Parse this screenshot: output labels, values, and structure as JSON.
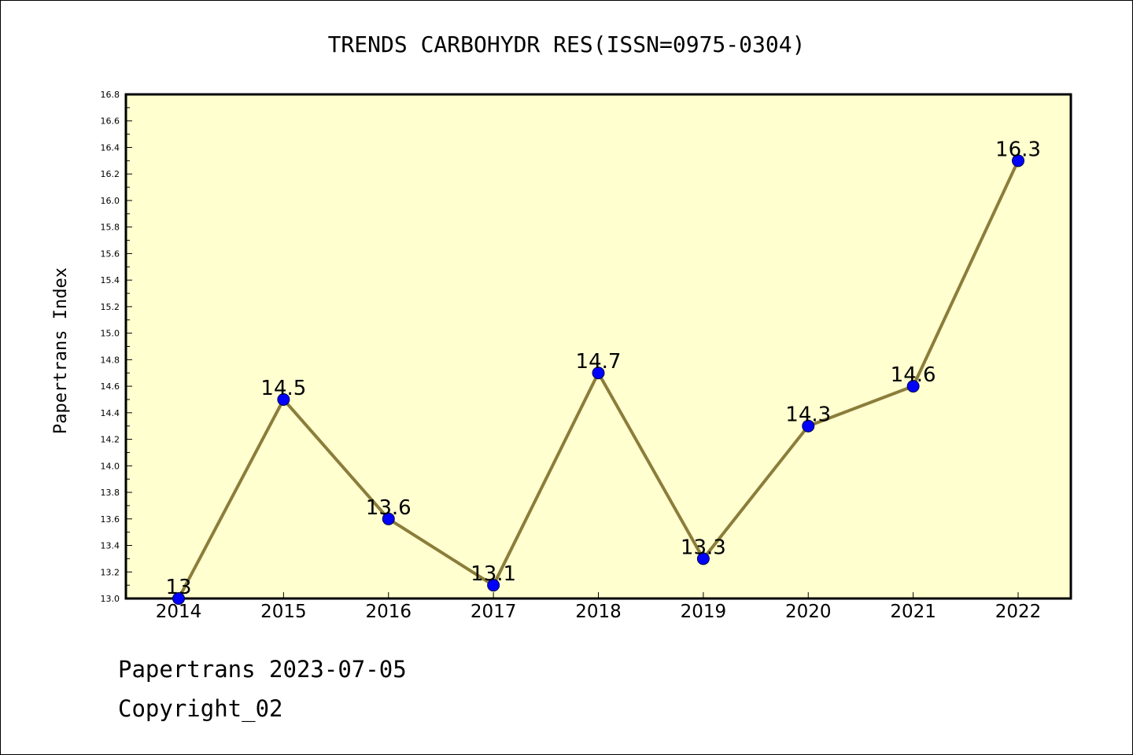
{
  "footer": {
    "line1": "Papertrans 2023-07-05",
    "line2": "Copyright_02"
  },
  "chart_data": {
    "type": "line",
    "title": "TRENDS CARBOHYDR RES(ISSN=0975-0304)",
    "xlabel": "",
    "ylabel": "Papertrans Index",
    "categories": [
      "2014",
      "2015",
      "2016",
      "2017",
      "2018",
      "2019",
      "2020",
      "2021",
      "2022"
    ],
    "values": [
      13,
      14.5,
      13.6,
      13.1,
      14.7,
      13.3,
      14.3,
      14.6,
      16.3
    ],
    "data_labels": [
      "13",
      "14.5",
      "13.6",
      "13.1",
      "14.7",
      "13.3",
      "14.3",
      "14.6",
      "16.3"
    ],
    "ylim": [
      13.0,
      16.8
    ],
    "yticks": [
      "13.0",
      "13.2",
      "13.4",
      "13.6",
      "13.8",
      "14.0",
      "14.2",
      "14.4",
      "14.6",
      "14.8",
      "15.0",
      "15.2",
      "15.4",
      "15.6",
      "15.8",
      "16.0",
      "16.2",
      "16.4",
      "16.6",
      "16.8"
    ],
    "grid": false,
    "legend": "none",
    "colors": {
      "plot_background": "#FFFFD0",
      "line": "#8B7D3A",
      "marker": "#0000FF",
      "marker_edge": "#00004A"
    }
  }
}
